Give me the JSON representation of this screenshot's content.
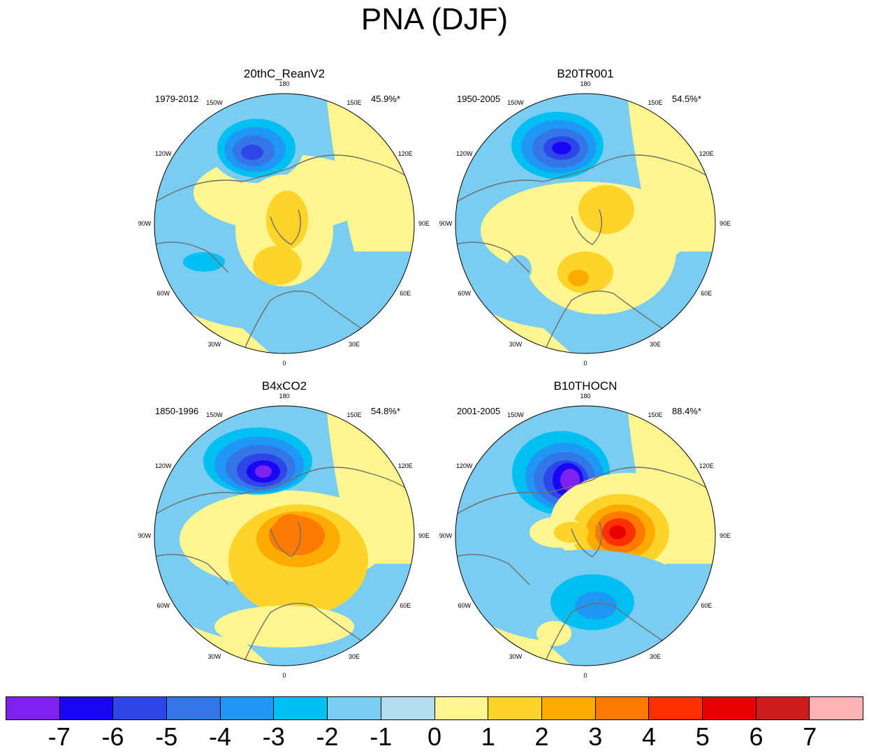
{
  "title": "PNA (DJF)",
  "panels": [
    {
      "title": "20thC_ReanV2",
      "years": "1979-2012",
      "pct": "45.9%*"
    },
    {
      "title": "B20TR001",
      "years": "1950-2005",
      "pct": "54.5%*"
    },
    {
      "title": "B4xCO2",
      "years": "1850-1996",
      "pct": "54.8%*"
    },
    {
      "title": "B10THOCN",
      "years": "2001-2005",
      "pct": "88.4%*"
    }
  ],
  "lon_labels": {
    "n180": "180",
    "w150": "150W",
    "e150": "150E",
    "w120": "120W",
    "e120": "120E",
    "w90": "90W",
    "e90": "90E",
    "w60": "60W",
    "e60": "60E",
    "w30": "30W",
    "e30": "30E",
    "n0": "0"
  },
  "colorbar": {
    "colors": [
      "#7f22f0",
      "#1a05f5",
      "#2e45e8",
      "#3475e8",
      "#1e97f5",
      "#00c0f2",
      "#7accf1",
      "#b4def0",
      "#fff68f",
      "#ffd42a",
      "#ffaa00",
      "#ff7a00",
      "#ff3000",
      "#e80000",
      "#cd1c1c",
      "#ffb3b3"
    ],
    "labels": [
      "-7",
      "-6",
      "-5",
      "-4",
      "-3",
      "-2",
      "-1",
      "0",
      "1",
      "2",
      "3",
      "4",
      "5",
      "6",
      "7"
    ]
  },
  "chart_data": {
    "type": "heatmap",
    "title": "PNA (DJF)",
    "projection": "north polar stereographic",
    "color_levels": [
      -7,
      -6,
      -5,
      -4,
      -3,
      -2,
      -1,
      0,
      1,
      2,
      3,
      4,
      5,
      6,
      7
    ],
    "panels": [
      {
        "name": "20thC_ReanV2",
        "years": "1979-2012",
        "variance_explained": "45.9%*",
        "min_level": -5,
        "max_level": 2
      },
      {
        "name": "B20TR001",
        "years": "1950-2005",
        "variance_explained": "54.5%*",
        "min_level": -6,
        "max_level": 2
      },
      {
        "name": "B4xCO2",
        "years": "1850-1996",
        "variance_explained": "54.8%*",
        "min_level": -7,
        "max_level": 4
      },
      {
        "name": "B10THOCN",
        "years": "2001-2005",
        "variance_explained": "88.4%*",
        "min_level": -7,
        "max_level": 6
      }
    ]
  }
}
